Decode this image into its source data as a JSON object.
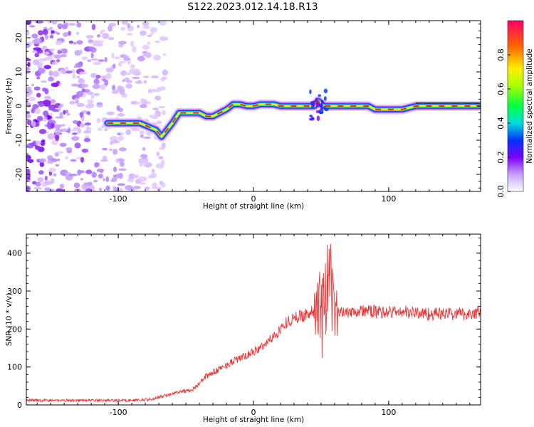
{
  "title": "S122.2023.012.14.18.R13",
  "chart_data": [
    {
      "type": "heatmap",
      "xlabel": "Height of straight line (km)",
      "ylabel": "Frequency (Hz)",
      "xlim": [
        -168,
        168
      ],
      "ylim": [
        -25,
        25
      ],
      "xticks": [
        -100,
        0,
        100
      ],
      "yticks": [
        -20,
        -10,
        0,
        10,
        20
      ],
      "grid": false,
      "colorbar": {
        "label": "Normalized spectral amplitude",
        "range": [
          0,
          1
        ],
        "ticks": [
          0.0,
          0.2,
          0.4,
          0.6,
          0.8
        ]
      },
      "ridge": {
        "x": [
          -108,
          -100,
          -92,
          -84,
          -78,
          -72,
          -68,
          -64,
          -60,
          -55,
          -50,
          -45,
          -40,
          -35,
          -30,
          -25,
          -20,
          -15,
          -10,
          -5,
          0,
          5,
          10,
          15,
          20,
          25,
          30,
          35,
          40,
          45,
          48,
          52,
          55,
          60,
          70,
          80,
          85,
          90,
          95,
          100,
          105,
          110,
          115,
          120,
          130,
          140,
          150,
          160,
          168
        ],
        "y": [
          -5,
          -5,
          -5,
          -5,
          -6,
          -7,
          -9,
          -7,
          -5,
          -2,
          -2,
          -2,
          -2,
          -3,
          -3,
          -2,
          -1,
          0.5,
          0.5,
          0,
          0,
          0.5,
          0.5,
          0.5,
          0,
          0,
          0,
          0,
          0,
          0,
          1.5,
          0,
          0,
          0,
          0,
          0,
          0,
          -1,
          -1,
          -1,
          -1,
          -1,
          -0.5,
          0,
          0,
          0,
          0,
          0,
          0
        ]
      },
      "noise_region": [
        -168,
        -65
      ]
    },
    {
      "type": "line",
      "xlabel": "Height of straight line (km)",
      "ylabel": "SNR (10 * v/v)",
      "xlim": [
        -168,
        168
      ],
      "ylim": [
        0,
        450
      ],
      "xticks": [
        -100,
        0,
        100
      ],
      "yticks": [
        0,
        100,
        200,
        300,
        400
      ],
      "grid": false,
      "series": [
        {
          "color": "#ee3333",
          "x": [
            -168,
            -150,
            -130,
            -110,
            -90,
            -75,
            -65,
            -55,
            -45,
            -35,
            -25,
            -15,
            -5,
            5,
            15,
            25,
            35,
            45,
            50,
            55,
            58,
            60,
            62,
            65,
            70,
            80,
            90,
            100,
            110,
            120,
            130,
            140,
            150,
            160,
            168
          ],
          "y": [
            12,
            12,
            12,
            12,
            12,
            15,
            25,
            35,
            40,
            75,
            95,
            115,
            130,
            150,
            180,
            220,
            235,
            245,
            255,
            280,
            300,
            250,
            240,
            245,
            248,
            248,
            245,
            245,
            245,
            243,
            240,
            240,
            240,
            240,
            245
          ]
        }
      ]
    }
  ],
  "colors": {
    "line": "#ee3333",
    "axis": "#000000",
    "background": "#ffffff"
  }
}
